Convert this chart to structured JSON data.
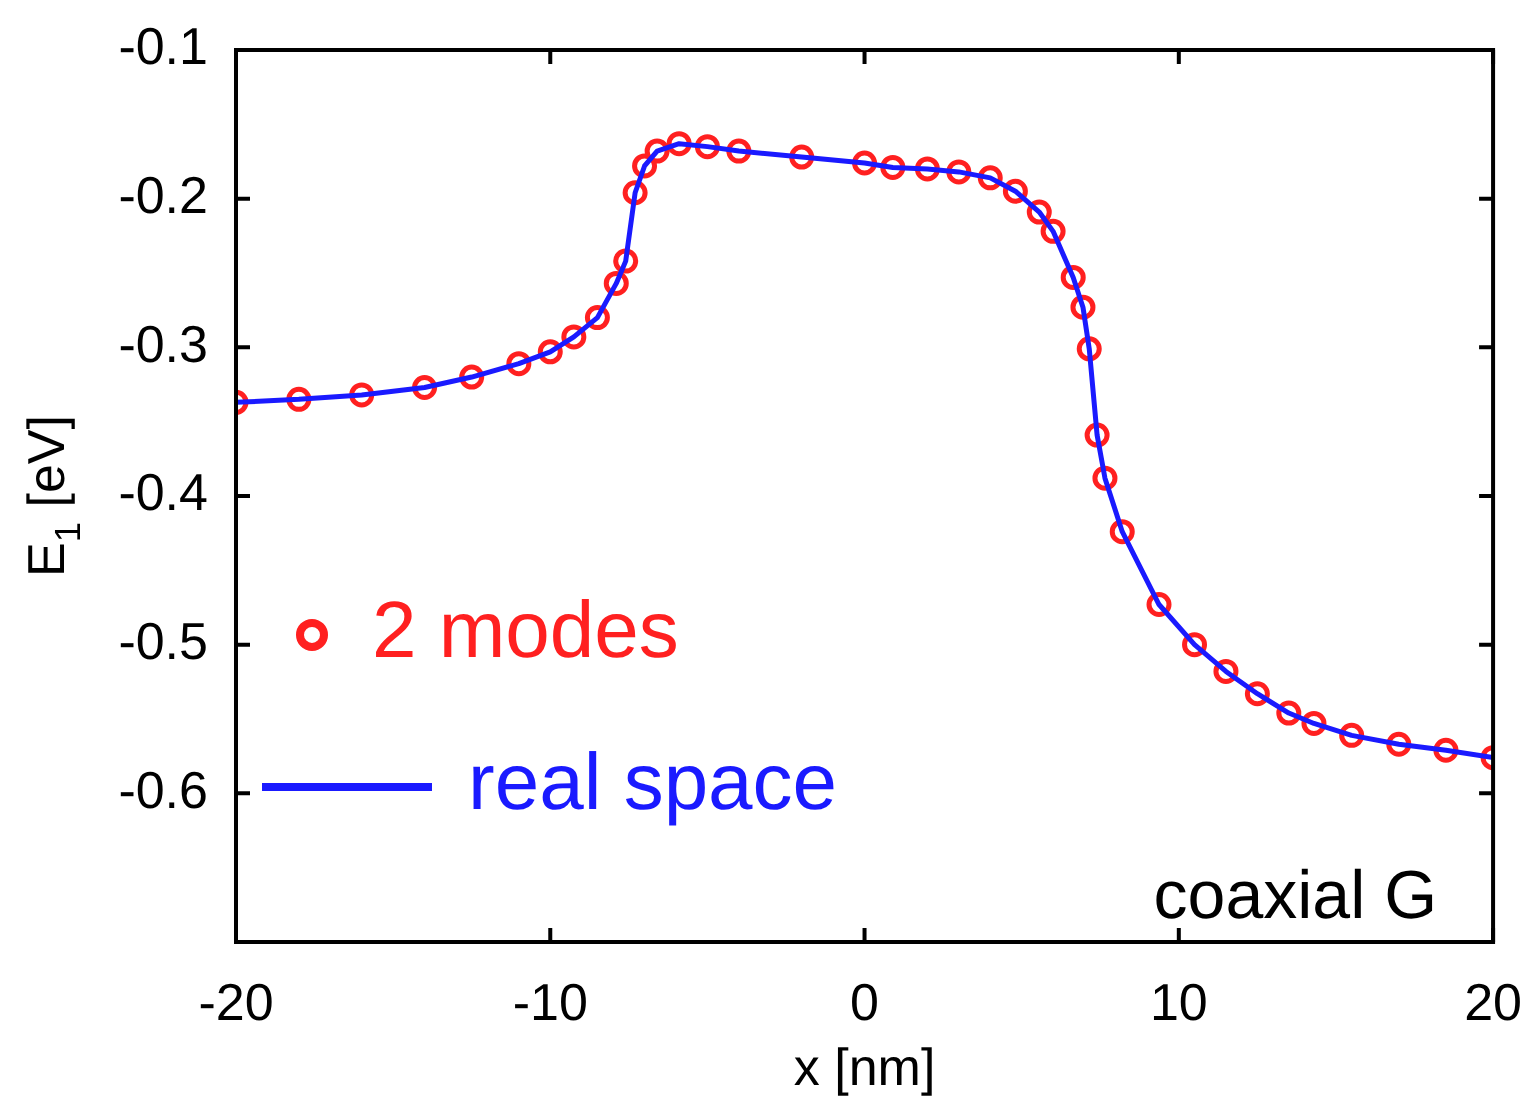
{
  "chart_data": {
    "type": "line",
    "xlabel": "x [nm]",
    "ylabel": "E$_{1}$ [eV]",
    "x": [
      -20,
      -18,
      -16,
      -14,
      -12.5,
      -11,
      -10,
      -9.25,
      -8.5,
      -7.9,
      -7.6,
      -7.3,
      -7.0,
      -6.6,
      -5.9,
      -5,
      -4,
      -2,
      0,
      0.9,
      2,
      3,
      4,
      4.8,
      5.56,
      6.0,
      6.64,
      6.95,
      7.15,
      7.4,
      7.65,
      8.2,
      9.37,
      10.5,
      11.5,
      12.5,
      13.5,
      14.3,
      15.5,
      17,
      18.5,
      20
    ],
    "series": [
      {
        "name": "2 modes",
        "type": "scatter",
        "marker": "circle",
        "color": "#ff2020",
        "values": [
          -0.337,
          -0.335,
          -0.332,
          -0.327,
          -0.32,
          -0.311,
          -0.303,
          -0.293,
          -0.28,
          -0.257,
          -0.242,
          -0.196,
          -0.178,
          -0.168,
          -0.163,
          -0.165,
          -0.168,
          -0.172,
          -0.176,
          -0.179,
          -0.18,
          -0.182,
          -0.186,
          -0.195,
          -0.209,
          -0.222,
          -0.253,
          -0.273,
          -0.301,
          -0.359,
          -0.388,
          -0.424,
          -0.473,
          -0.5,
          -0.518,
          -0.533,
          -0.546,
          -0.553,
          -0.561,
          -0.567,
          -0.571,
          -0.576
        ]
      },
      {
        "name": "real space",
        "marker": "none",
        "line_style": "solid",
        "color": "#1a1aff",
        "values": [
          -0.337,
          -0.335,
          -0.332,
          -0.327,
          -0.32,
          -0.311,
          -0.303,
          -0.293,
          -0.28,
          -0.257,
          -0.242,
          -0.196,
          -0.178,
          -0.168,
          -0.163,
          -0.165,
          -0.168,
          -0.172,
          -0.176,
          -0.179,
          -0.18,
          -0.182,
          -0.186,
          -0.195,
          -0.209,
          -0.222,
          -0.253,
          -0.273,
          -0.301,
          -0.359,
          -0.388,
          -0.424,
          -0.473,
          -0.5,
          -0.518,
          -0.533,
          -0.546,
          -0.553,
          -0.561,
          -0.567,
          -0.571,
          -0.576
        ]
      }
    ],
    "xlim": [
      -20,
      20
    ],
    "xticks": [
      -20,
      -10,
      0,
      10,
      20
    ],
    "ylim": [
      -0.7,
      -0.1
    ],
    "yticks": [
      {
        "value": -0.7,
        "label": null
      },
      -0.6,
      -0.5,
      -0.4,
      -0.3,
      -0.2,
      -0.1
    ],
    "grid": false,
    "legend": "left",
    "annotations": [
      "coaxial G"
    ]
  }
}
